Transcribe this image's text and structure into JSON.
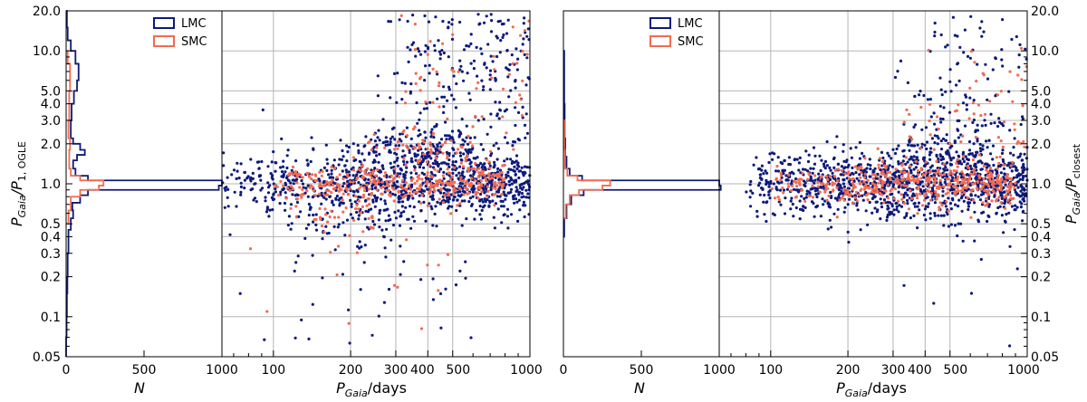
{
  "colors": {
    "lmc": "#0d1a7a",
    "smc": "#f26b50",
    "grid": "#b5b5b5"
  },
  "chart_data": [
    {
      "type": "histogram",
      "panel": "left-histogram",
      "xlabel_main": "N",
      "ylabel_main": "P",
      "ylabel_sub": "Gaia",
      "ylabel_rest_main": "/P",
      "ylabel_rest_sub": "1, OGLE",
      "xlim": [
        0,
        1000
      ],
      "x_ticks": [
        "0",
        "500",
        "1000"
      ],
      "y_scale": "log",
      "ylim": [
        0.05,
        20
      ],
      "y_ticks": [
        "0.05",
        "0.1",
        "0.2",
        "0.3",
        "0.4",
        "0.5",
        "1.0",
        "2.0",
        "3.0",
        "4.0",
        "5.0",
        "10.0",
        "20.0"
      ],
      "legend": [
        "LMC",
        "SMC"
      ],
      "series": [
        {
          "name": "LMC",
          "bins": [
            [
              0.05,
              0.07,
              0
            ],
            [
              0.07,
              0.1,
              3
            ],
            [
              0.1,
              0.15,
              5
            ],
            [
              0.15,
              0.2,
              8
            ],
            [
              0.2,
              0.3,
              10
            ],
            [
              0.3,
              0.45,
              15
            ],
            [
              0.45,
              0.55,
              30
            ],
            [
              0.55,
              0.63,
              45
            ],
            [
              0.63,
              0.72,
              40
            ],
            [
              0.72,
              0.82,
              90
            ],
            [
              0.82,
              0.9,
              140
            ],
            [
              0.9,
              0.97,
              980
            ],
            [
              0.97,
              1.06,
              1000
            ],
            [
              1.06,
              1.15,
              140
            ],
            [
              1.15,
              1.3,
              60
            ],
            [
              1.3,
              1.5,
              45
            ],
            [
              1.5,
              1.65,
              70
            ],
            [
              1.65,
              1.8,
              120
            ],
            [
              1.8,
              2.0,
              90
            ],
            [
              2.0,
              2.2,
              45
            ],
            [
              2.2,
              3.0,
              30
            ],
            [
              3.0,
              4.0,
              35
            ],
            [
              4.0,
              5.0,
              50
            ],
            [
              5.0,
              6.0,
              70
            ],
            [
              6.0,
              8.0,
              80
            ],
            [
              8.0,
              10.0,
              60
            ],
            [
              10.0,
              12.0,
              30
            ],
            [
              12.0,
              15.0,
              10
            ],
            [
              15.0,
              20.0,
              5
            ]
          ]
        },
        {
          "name": "SMC",
          "bins": [
            [
              0.5,
              0.63,
              15
            ],
            [
              0.63,
              0.8,
              30
            ],
            [
              0.8,
              0.9,
              90
            ],
            [
              0.9,
              0.97,
              210
            ],
            [
              0.97,
              1.06,
              240
            ],
            [
              1.06,
              1.15,
              90
            ],
            [
              1.15,
              1.3,
              30
            ],
            [
              1.3,
              1.8,
              20
            ],
            [
              1.8,
              2.2,
              25
            ],
            [
              2.2,
              3.0,
              15
            ],
            [
              3.0,
              5.0,
              20
            ],
            [
              5.0,
              8.0,
              25
            ],
            [
              8.0,
              10.0,
              10
            ]
          ]
        }
      ]
    },
    {
      "type": "scatter",
      "panel": "left-scatter",
      "xlabel_main": "P",
      "xlabel_sub": "Gaia",
      "xlabel_rest": "/days",
      "x_scale": "log",
      "xlim": [
        63,
        1000
      ],
      "x_ticks": [
        "100",
        "200",
        "300",
        "400",
        "500",
        "1000"
      ],
      "y_scale": "log",
      "ylim": [
        0.05,
        20
      ],
      "grid": true,
      "series": [
        {
          "name": "LMC",
          "color": "#0d1a7a",
          "clusters": [
            [
              1.0,
              60,
              1000,
              0.11,
              900
            ],
            [
              1.8,
              180,
              600,
              0.08,
              160
            ],
            [
              7.0,
              250,
              1000,
              0.45,
              320
            ],
            [
              0.55,
              110,
              350,
              0.1,
              90
            ],
            [
              0.25,
              60,
              600,
              0.5,
              60
            ]
          ]
        },
        {
          "name": "SMC",
          "color": "#f26b50",
          "clusters": [
            [
              1.0,
              100,
              800,
              0.07,
              350
            ],
            [
              1.8,
              200,
              600,
              0.08,
              60
            ],
            [
              6.0,
              300,
              1000,
              0.35,
              60
            ],
            [
              0.55,
              120,
              250,
              0.07,
              40
            ],
            [
              0.2,
              70,
              500,
              0.5,
              20
            ]
          ]
        }
      ]
    },
    {
      "type": "histogram",
      "panel": "right-histogram",
      "xlabel_main": "N",
      "xlim": [
        0,
        1000
      ],
      "x_ticks": [
        "0",
        "500",
        "1000"
      ],
      "y_scale": "log",
      "ylim": [
        0.05,
        20
      ],
      "legend": [
        "LMC",
        "SMC"
      ],
      "series": [
        {
          "name": "LMC",
          "bins": [
            [
              0.4,
              0.55,
              5
            ],
            [
              0.55,
              0.7,
              20
            ],
            [
              0.7,
              0.82,
              50
            ],
            [
              0.82,
              0.9,
              130
            ],
            [
              0.9,
              0.97,
              1010
            ],
            [
              0.97,
              1.06,
              1000
            ],
            [
              1.06,
              1.15,
              120
            ],
            [
              1.15,
              1.3,
              40
            ],
            [
              1.3,
              1.6,
              20
            ],
            [
              1.6,
              2.2,
              12
            ],
            [
              2.2,
              4.0,
              8
            ],
            [
              4.0,
              10.0,
              5
            ]
          ]
        },
        {
          "name": "SMC",
          "bins": [
            [
              0.55,
              0.7,
              15
            ],
            [
              0.7,
              0.82,
              40
            ],
            [
              0.82,
              0.9,
              100
            ],
            [
              0.9,
              0.97,
              250
            ],
            [
              0.97,
              1.06,
              300
            ],
            [
              1.06,
              1.15,
              90
            ],
            [
              1.15,
              1.3,
              25
            ],
            [
              1.3,
              1.8,
              10
            ],
            [
              1.8,
              3.0,
              6
            ]
          ]
        }
      ]
    },
    {
      "type": "scatter",
      "panel": "right-scatter",
      "xlabel_main": "P",
      "xlabel_sub": "Gaia",
      "xlabel_rest": "/days",
      "ylabel_main": "P",
      "ylabel_sub": "Gaia",
      "ylabel_rest_main": "/P",
      "ylabel_rest_sub": "closest",
      "x_scale": "log",
      "xlim": [
        63,
        1000
      ],
      "x_ticks": [
        "100",
        "200",
        "300",
        "400",
        "500",
        "1000"
      ],
      "y_scale": "log",
      "ylim": [
        0.05,
        20
      ],
      "y_ticks": [
        "0.05",
        "0.1",
        "0.2",
        "0.3",
        "0.4",
        "0.5",
        "1.0",
        "2.0",
        "3.0",
        "4.0",
        "5.0",
        "10.0",
        "20.0"
      ],
      "grid": true,
      "series": [
        {
          "name": "LMC",
          "color": "#0d1a7a",
          "clusters": [
            [
              1.0,
              80,
              1000,
              0.13,
              1100
            ],
            [
              1.8,
              300,
              700,
              0.1,
              80
            ],
            [
              4.0,
              300,
              1000,
              0.6,
              180
            ]
          ]
        },
        {
          "name": "SMC",
          "color": "#f26b50",
          "clusters": [
            [
              1.0,
              100,
              900,
              0.08,
              450
            ],
            [
              2.5,
              300,
              1000,
              0.4,
              70
            ]
          ]
        }
      ]
    }
  ]
}
